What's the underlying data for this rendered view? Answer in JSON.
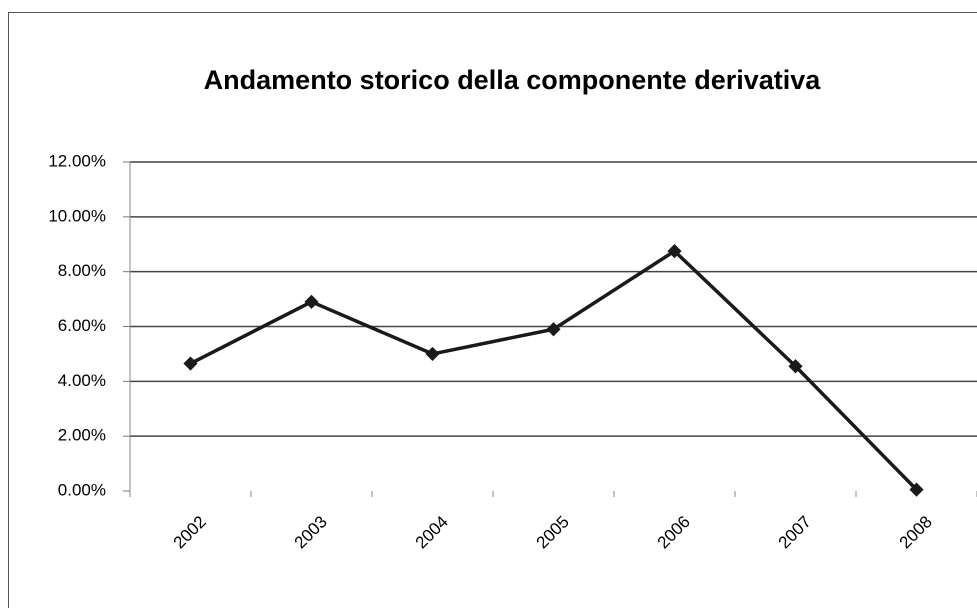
{
  "chart_data": {
    "type": "line",
    "title": "Andamento storico della componente derivativa",
    "categories": [
      "2002",
      "2003",
      "2004",
      "2005",
      "2006",
      "2007",
      "2008"
    ],
    "series": [
      {
        "color": "#1a1a1a",
        "values": [
          4.65,
          6.9,
          5.0,
          5.9,
          8.75,
          4.55,
          0.05
        ]
      }
    ],
    "ylim": [
      0,
      12
    ],
    "yticks": [
      {
        "value": 0,
        "label": "0.00%"
      },
      {
        "value": 2,
        "label": "2.00%"
      },
      {
        "value": 4,
        "label": "4.00%"
      },
      {
        "value": 6,
        "label": "6.00%"
      },
      {
        "value": 8,
        "label": "8.00%"
      },
      {
        "value": 10,
        "label": "10.00%"
      },
      {
        "value": 12,
        "label": "12.00%"
      }
    ],
    "grid": true
  }
}
